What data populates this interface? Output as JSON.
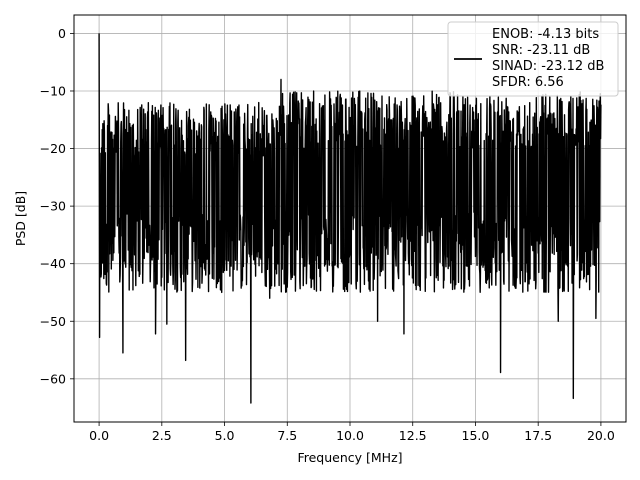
{
  "chart_data": {
    "type": "line",
    "title": "",
    "xlabel": "Frequency [MHz]",
    "ylabel": "PSD [dB]",
    "xlim": [
      -1.0,
      21.0
    ],
    "ylim": [
      -67.5,
      3.2
    ],
    "xticks": [
      0.0,
      2.5,
      5.0,
      7.5,
      10.0,
      12.5,
      15.0,
      17.5,
      20.0
    ],
    "xtick_labels": [
      "0.0",
      "2.5",
      "5.0",
      "7.5",
      "10.0",
      "12.5",
      "15.0",
      "17.5",
      "20.0"
    ],
    "yticks": [
      0,
      -10,
      -20,
      -30,
      -40,
      -50,
      -60
    ],
    "ytick_labels": [
      "0",
      "−10",
      "−20",
      "−30",
      "−40",
      "−50",
      "−60"
    ],
    "grid": true,
    "legend_position": "top-right",
    "series_color": "#000000",
    "legend": [
      "ENOB: -4.13 bits",
      "SNR: -23.11 dB",
      "SINAD: -23.12 dB",
      "SFDR: 6.56"
    ],
    "series": [
      {
        "name": "",
        "x_range": [
          0.0,
          20.0
        ],
        "noise_floor_typical": [
          -45.0,
          -12.0
        ],
        "peak": {
          "x": 0.0,
          "y": 0.0
        },
        "notable_points": [
          {
            "x": 0.02,
            "y": -52.8
          },
          {
            "x": 0.95,
            "y": -55.5
          },
          {
            "x": 2.25,
            "y": -52.2
          },
          {
            "x": 2.7,
            "y": -50.5
          },
          {
            "x": 3.45,
            "y": -56.8
          },
          {
            "x": 6.05,
            "y": -64.2
          },
          {
            "x": 6.8,
            "y": -46.0
          },
          {
            "x": 7.25,
            "y": -8.0
          },
          {
            "x": 11.1,
            "y": -50.0
          },
          {
            "x": 12.15,
            "y": -52.2
          },
          {
            "x": 16.0,
            "y": -58.9
          },
          {
            "x": 18.3,
            "y": -50.0
          },
          {
            "x": 18.9,
            "y": -63.4
          },
          {
            "x": 19.8,
            "y": -49.5
          }
        ]
      }
    ]
  }
}
